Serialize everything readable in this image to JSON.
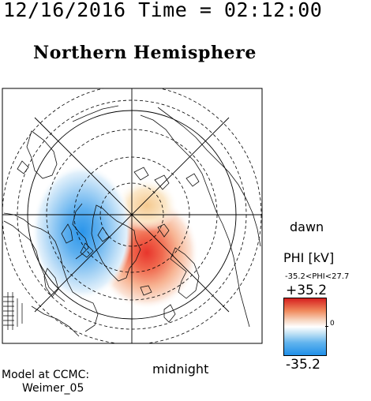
{
  "header": {
    "timestamp": "12/16/2016 Time = 02:12:00"
  },
  "map": {
    "title": "Northern Hemisphere",
    "dawn_label": "dawn",
    "midnight_label": "midnight",
    "projection": "polar stereographic, north pole centered",
    "latitude_circles_deg": [
      80,
      70,
      60,
      50
    ],
    "meridian_spokes": 8
  },
  "legend": {
    "title": "PHI [kV]",
    "range_text": "-35.2<PHI<27.7",
    "max_label": "+35.2",
    "min_label": "-35.2",
    "zero_label": "0",
    "colors": {
      "positive": "#d6201e",
      "zero": "#ffffff",
      "negative": "#1f8fe8"
    }
  },
  "footer": {
    "model_line1": "Model at CCMC:",
    "model_line2": "Weimer_05"
  }
}
